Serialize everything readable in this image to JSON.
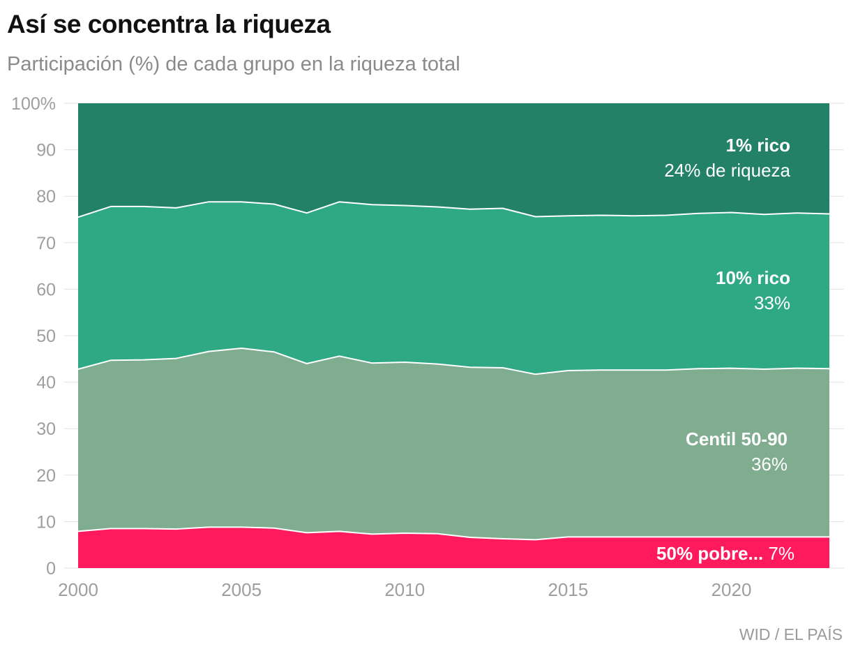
{
  "title": "Así se concentra la riqueza",
  "subtitle": "Participación (%) de cada grupo en la riqueza total",
  "source": "WID / EL PAÍS",
  "chart_data": {
    "type": "area",
    "stacked": true,
    "title": "Así se concentra la riqueza",
    "subtitle": "Participación (%) de cada grupo en la riqueza total",
    "xlabel": "",
    "ylabel": "",
    "xlim": [
      2000,
      2023
    ],
    "ylim": [
      0,
      100
    ],
    "x_ticks": [
      "2000",
      "2005",
      "2010",
      "2015",
      "2020"
    ],
    "y_ticks": [
      "0",
      "10",
      "20",
      "30",
      "40",
      "50",
      "60",
      "70",
      "80",
      "90",
      "100%"
    ],
    "x": [
      2000,
      2001,
      2002,
      2003,
      2004,
      2005,
      2006,
      2007,
      2008,
      2009,
      2010,
      2011,
      2012,
      2013,
      2014,
      2015,
      2016,
      2017,
      2018,
      2019,
      2020,
      2021,
      2022,
      2023
    ],
    "series": [
      {
        "name": "50% pobre...",
        "share_label": "7%",
        "color": "#ff1a5e",
        "values": [
          7.9,
          8.5,
          8.5,
          8.4,
          8.8,
          8.8,
          8.6,
          7.6,
          7.9,
          7.3,
          7.5,
          7.4,
          6.6,
          6.3,
          6.1,
          6.7,
          6.7,
          6.7,
          6.7,
          6.7,
          6.7,
          6.7,
          6.7,
          6.7
        ]
      },
      {
        "name": "Centil 50-90",
        "share_label": "36%",
        "color": "#80ad8f",
        "values": [
          34.9,
          36.2,
          36.3,
          36.7,
          37.8,
          38.5,
          37.9,
          36.4,
          37.7,
          36.8,
          36.8,
          36.5,
          36.6,
          36.8,
          35.6,
          35.8,
          35.9,
          35.9,
          35.9,
          36.2,
          36.3,
          36.1,
          36.3,
          36.2
        ]
      },
      {
        "name": "10% rico",
        "share_label": "33%",
        "color": "#2fa884",
        "values": [
          32.7,
          33.1,
          33.0,
          32.4,
          32.2,
          31.5,
          31.8,
          32.4,
          33.2,
          34.1,
          33.7,
          33.8,
          34.0,
          34.3,
          33.9,
          33.3,
          33.3,
          33.2,
          33.3,
          33.4,
          33.5,
          33.3,
          33.4,
          33.3
        ]
      },
      {
        "name": "1% rico",
        "share_label": "24% de riqueza",
        "color": "#238167",
        "values": [
          24.5,
          22.2,
          22.2,
          22.5,
          21.2,
          21.2,
          21.7,
          23.6,
          21.2,
          21.8,
          22.0,
          22.3,
          22.8,
          22.6,
          24.4,
          24.2,
          24.1,
          24.2,
          24.1,
          23.7,
          23.5,
          23.9,
          23.6,
          23.8
        ]
      }
    ]
  }
}
